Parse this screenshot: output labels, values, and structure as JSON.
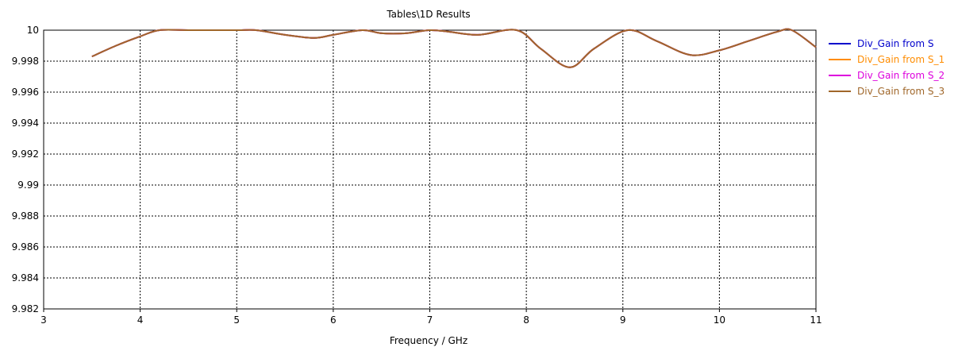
{
  "chart_data": {
    "type": "line",
    "title": "Tables\\1D Results",
    "xlabel": "Frequency / GHz",
    "ylabel": "",
    "xlim": [
      3,
      11
    ],
    "ylim": [
      9.982,
      10
    ],
    "xticks": [
      "3",
      "4",
      "5",
      "6",
      "7",
      "8",
      "9",
      "10",
      "11"
    ],
    "yticks": [
      "10",
      "9.998",
      "9.996",
      "9.994",
      "9.992",
      "9.99",
      "9.988",
      "9.986",
      "9.984",
      "9.982"
    ],
    "grid": true,
    "legend_position": "right",
    "x": [
      3.5,
      3.75,
      4.0,
      4.2,
      4.5,
      5.0,
      5.2,
      5.5,
      5.8,
      6.0,
      6.3,
      6.5,
      6.75,
      7.0,
      7.2,
      7.5,
      7.9,
      8.15,
      8.45,
      8.7,
      9.05,
      9.35,
      9.7,
      10.0,
      10.3,
      10.6,
      10.75,
      11.0
    ],
    "series": [
      {
        "name": "Div_Gain from S",
        "color": "#0000cc",
        "y": [
          9.9983,
          9.999,
          9.9996,
          10.0,
          10.0,
          10.0,
          10.0,
          9.9997,
          9.9995,
          9.9997,
          10.0,
          9.9998,
          9.9998,
          10.0,
          9.9999,
          9.9997,
          10.0,
          9.9988,
          9.9976,
          9.9988,
          10.0,
          9.9993,
          9.9984,
          9.9987,
          9.9993,
          9.9999,
          10.0,
          9.9989
        ]
      },
      {
        "name": "Div_Gain from S_1",
        "color": "#ff8c00",
        "y": [
          9.9983,
          9.999,
          9.9996,
          10.0,
          10.0,
          10.0,
          10.0,
          9.9997,
          9.9995,
          9.9997,
          10.0,
          9.9998,
          9.9998,
          10.0,
          9.9999,
          9.9997,
          10.0,
          9.9988,
          9.9976,
          9.9988,
          10.0,
          9.9993,
          9.9984,
          9.9987,
          9.9993,
          9.9999,
          10.0,
          9.9989
        ]
      },
      {
        "name": "Div_Gain from S_2",
        "color": "#dd00dd",
        "y": [
          9.9983,
          9.999,
          9.9996,
          10.0,
          10.0,
          10.0,
          10.0,
          9.9997,
          9.9995,
          9.9997,
          10.0,
          9.9998,
          9.9998,
          10.0,
          9.9999,
          9.9997,
          10.0,
          9.9988,
          9.9976,
          9.9988,
          10.0,
          9.9993,
          9.9984,
          9.9987,
          9.9993,
          9.9999,
          10.0,
          9.9989
        ]
      },
      {
        "name": "Div_Gain from S_3",
        "color": "#a0672a",
        "y": [
          9.9983,
          9.999,
          9.9996,
          10.0,
          10.0,
          10.0,
          10.0,
          9.9997,
          9.9995,
          9.9997,
          10.0,
          9.9998,
          9.9998,
          10.0,
          9.9999,
          9.9997,
          10.0,
          9.9988,
          9.9976,
          9.9988,
          10.0,
          9.9993,
          9.9984,
          9.9987,
          9.9993,
          9.9999,
          10.0,
          9.9989
        ]
      }
    ]
  }
}
